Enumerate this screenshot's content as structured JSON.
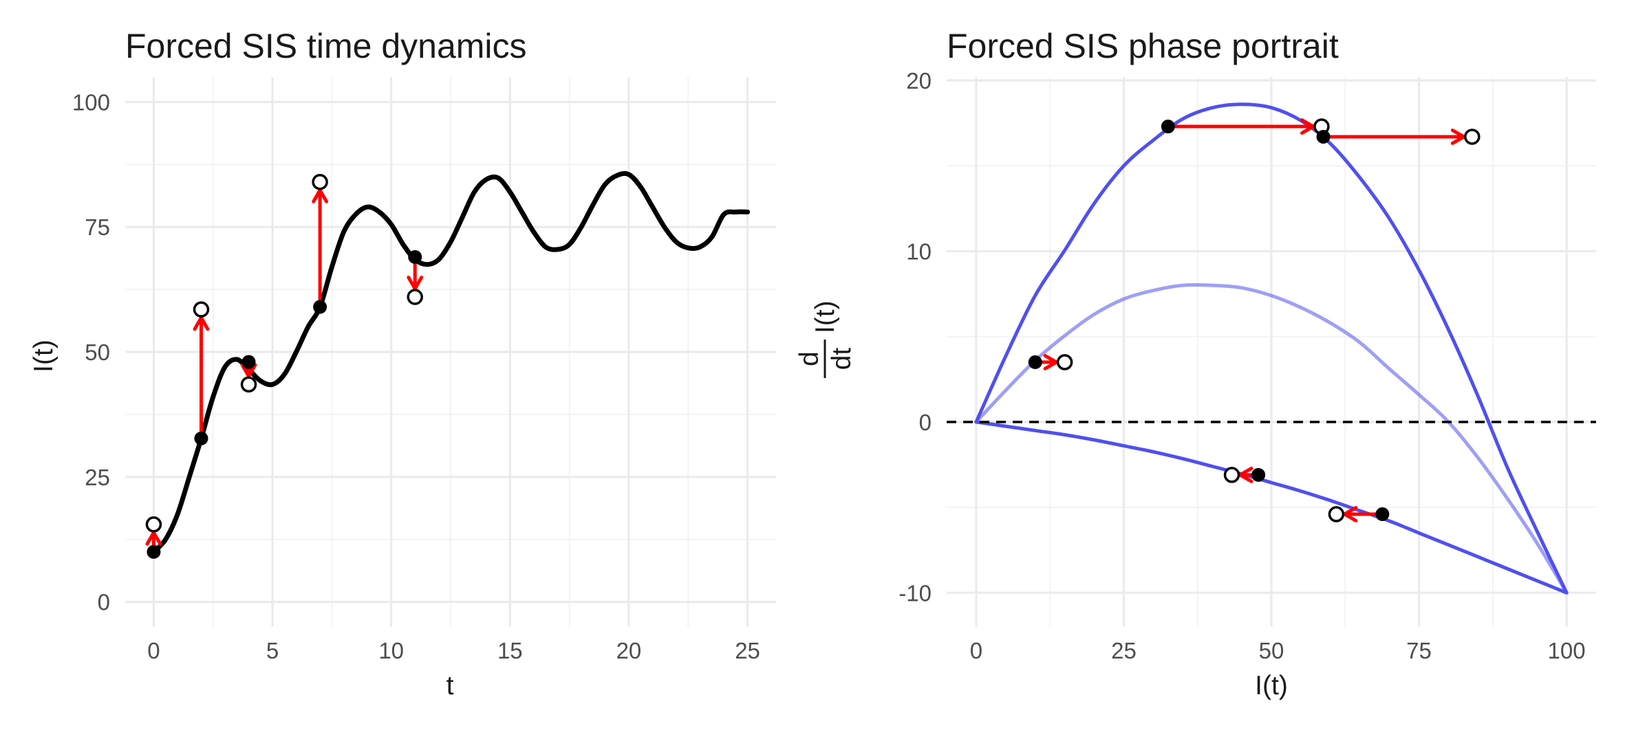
{
  "chart_data": [
    {
      "type": "line",
      "title": "Forced SIS time dynamics",
      "xlabel": "t",
      "ylabel": "I(t)",
      "xlim": [
        -1.2,
        26.2
      ],
      "ylim": [
        -5,
        105
      ],
      "xticks": [
        0,
        5,
        10,
        15,
        20,
        25
      ],
      "yticks": [
        0,
        25,
        50,
        75,
        100
      ],
      "grid": true,
      "series": [
        {
          "color": "#000000",
          "x": [
            0,
            0.5,
            1,
            1.5,
            2,
            2.5,
            3,
            3.5,
            4,
            4.5,
            5,
            5.5,
            6,
            6.5,
            7,
            7.5,
            8,
            8.5,
            9,
            9.5,
            10,
            10.5,
            11,
            11.5,
            12,
            12.5,
            13,
            13.5,
            14,
            14.5,
            15,
            15.5,
            16,
            16.5,
            17,
            17.5,
            18,
            18.5,
            19,
            19.5,
            20,
            20.5,
            21,
            21.5,
            22,
            22.5,
            23,
            23.5,
            24,
            24.5,
            25
          ],
          "y": [
            10,
            12.5,
            17.5,
            25,
            32.7,
            41,
            47,
            48.5,
            46.5,
            44.2,
            43.5,
            45.5,
            50,
            55,
            59,
            67,
            74,
            77.5,
            79,
            78,
            75.5,
            71.5,
            68.5,
            67.5,
            68.5,
            72,
            77,
            82,
            84.5,
            84.8,
            82,
            78,
            74,
            71,
            70.5,
            71.5,
            75,
            79.5,
            83.5,
            85.3,
            85.5,
            83,
            79,
            75,
            72,
            70.8,
            71,
            73,
            77.5,
            78,
            78
          ]
        }
      ],
      "pulses": [
        {
          "t": 0,
          "from": 10,
          "to": 15.5
        },
        {
          "t": 2,
          "from": 32.7,
          "to": 58.5
        },
        {
          "t": 4,
          "from": 48,
          "to": 43.5
        },
        {
          "t": 7,
          "from": 59,
          "to": 84
        },
        {
          "t": 11,
          "from": 69,
          "to": 61
        }
      ]
    },
    {
      "type": "line",
      "title": "Forced SIS phase portrait",
      "xlabel": "I(t)",
      "ylabel_top": "d",
      "ylabel_bottom": "dt",
      "ylabel_var": "I(t)",
      "xlim": [
        -5,
        105
      ],
      "ylim": [
        -12,
        20.2
      ],
      "xticks": [
        0,
        25,
        50,
        75,
        100
      ],
      "yticks": [
        -10,
        0,
        10,
        20
      ],
      "grid": true,
      "hline": 0,
      "series": [
        {
          "color": "#5050ee",
          "opacity": 1,
          "x": [
            0,
            5,
            10,
            15,
            20,
            25,
            30,
            35,
            40,
            45,
            50,
            55,
            60,
            65,
            70,
            75,
            80,
            85,
            90,
            95,
            100
          ],
          "y": [
            0,
            3.85,
            7.4,
            10.05,
            12.8,
            15,
            16.5,
            17.75,
            18.4,
            18.6,
            18.4,
            17.65,
            16.3,
            14.3,
            11.9,
            8.9,
            5.4,
            1.5,
            -2.7,
            -6.4,
            -10
          ]
        },
        {
          "color": "#5050ee",
          "opacity": 0.55,
          "x": [
            0,
            5,
            10,
            15,
            20,
            25,
            30,
            35,
            40,
            45,
            50,
            55,
            60,
            65,
            70,
            75,
            80,
            85,
            90,
            95,
            100
          ],
          "y": [
            0,
            1.85,
            3.6,
            5.05,
            6.3,
            7.2,
            7.7,
            8.0,
            8.0,
            7.85,
            7.4,
            6.7,
            5.8,
            4.65,
            3.1,
            1.6,
            0,
            -2.1,
            -4.5,
            -7.1,
            -10
          ]
        },
        {
          "color": "#5050ee",
          "opacity": 1,
          "x": [
            0,
            5,
            10,
            15,
            20,
            25,
            30,
            35,
            40,
            45,
            50,
            55,
            60,
            65,
            70,
            75,
            80,
            85,
            90,
            95,
            100
          ],
          "y": [
            0,
            -0.25,
            -0.5,
            -0.75,
            -1.05,
            -1.4,
            -1.75,
            -2.15,
            -2.6,
            -3.05,
            -3.55,
            -4.05,
            -4.6,
            -5.2,
            -5.8,
            -6.5,
            -7.2,
            -7.9,
            -8.6,
            -9.3,
            -10
          ]
        }
      ],
      "jumps": [
        {
          "from_I": 10,
          "to_I": 15,
          "from_y": 3.5,
          "to_y": 3.5
        },
        {
          "from_I": 32.5,
          "to_I": 58.5,
          "from_y": 17.3,
          "to_y": 17.3
        },
        {
          "from_I": 58.8,
          "to_I": 84,
          "from_y": 16.7,
          "to_y": 16.7
        },
        {
          "from_I": 47.8,
          "to_I": 43.3,
          "from_y": -3.1,
          "to_y": -3.1
        },
        {
          "from_I": 68.8,
          "to_I": 61,
          "from_y": -5.4,
          "to_y": -5.4
        }
      ]
    }
  ]
}
